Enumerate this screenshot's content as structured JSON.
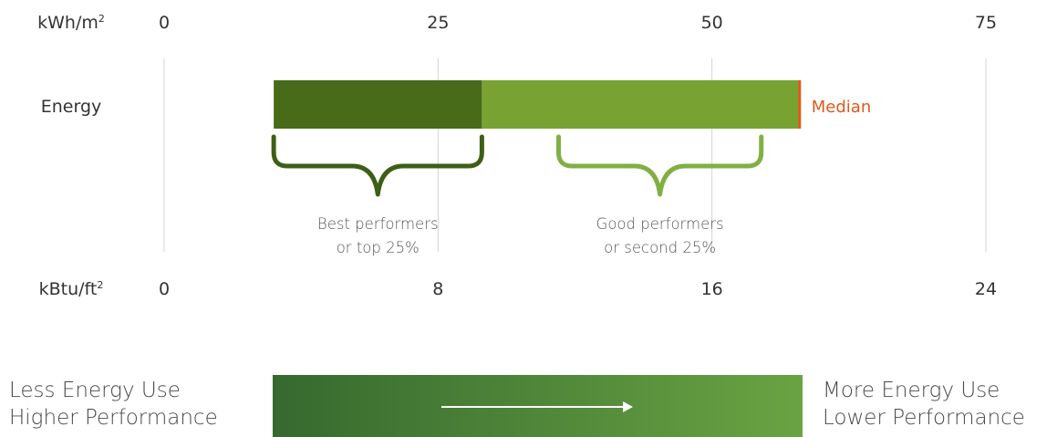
{
  "chart_data": {
    "type": "bar",
    "orientation": "horizontal",
    "top_axis": {
      "unit": "kWh/m2",
      "unit_base": "kWh/m",
      "unit_sup": "2",
      "ticks": [
        0,
        25,
        50,
        75
      ],
      "range": [
        0,
        75
      ]
    },
    "bottom_axis": {
      "unit": "kBtu/ft2",
      "unit_base": "kBtu/ft",
      "unit_sup": "2",
      "ticks": [
        0,
        8,
        16,
        24
      ],
      "range": [
        0,
        24
      ]
    },
    "grid": true,
    "category": "Energy",
    "segments": [
      {
        "start": 10,
        "end": 29,
        "color": "#476b19"
      },
      {
        "start": 29,
        "end": 58,
        "color": "#78a332"
      }
    ],
    "median": {
      "value": 58,
      "label": "Median",
      "color": "#e2581c"
    },
    "annotations": [
      {
        "from": 10,
        "to": 29,
        "lines": [
          "Best performers",
          "or top 25%"
        ],
        "color": "#3d5f15"
      },
      {
        "from": 36,
        "to": 54.5,
        "lines": [
          "Good performers",
          "or second 25%"
        ],
        "color": "#80b043"
      }
    ]
  },
  "legend_scale": {
    "left_lines": [
      "Less Energy Use",
      "Higher Performance"
    ],
    "right_lines": [
      "More Energy Use",
      "Lower Performance"
    ],
    "gradient": [
      "#35692f",
      "#6aa343"
    ]
  }
}
